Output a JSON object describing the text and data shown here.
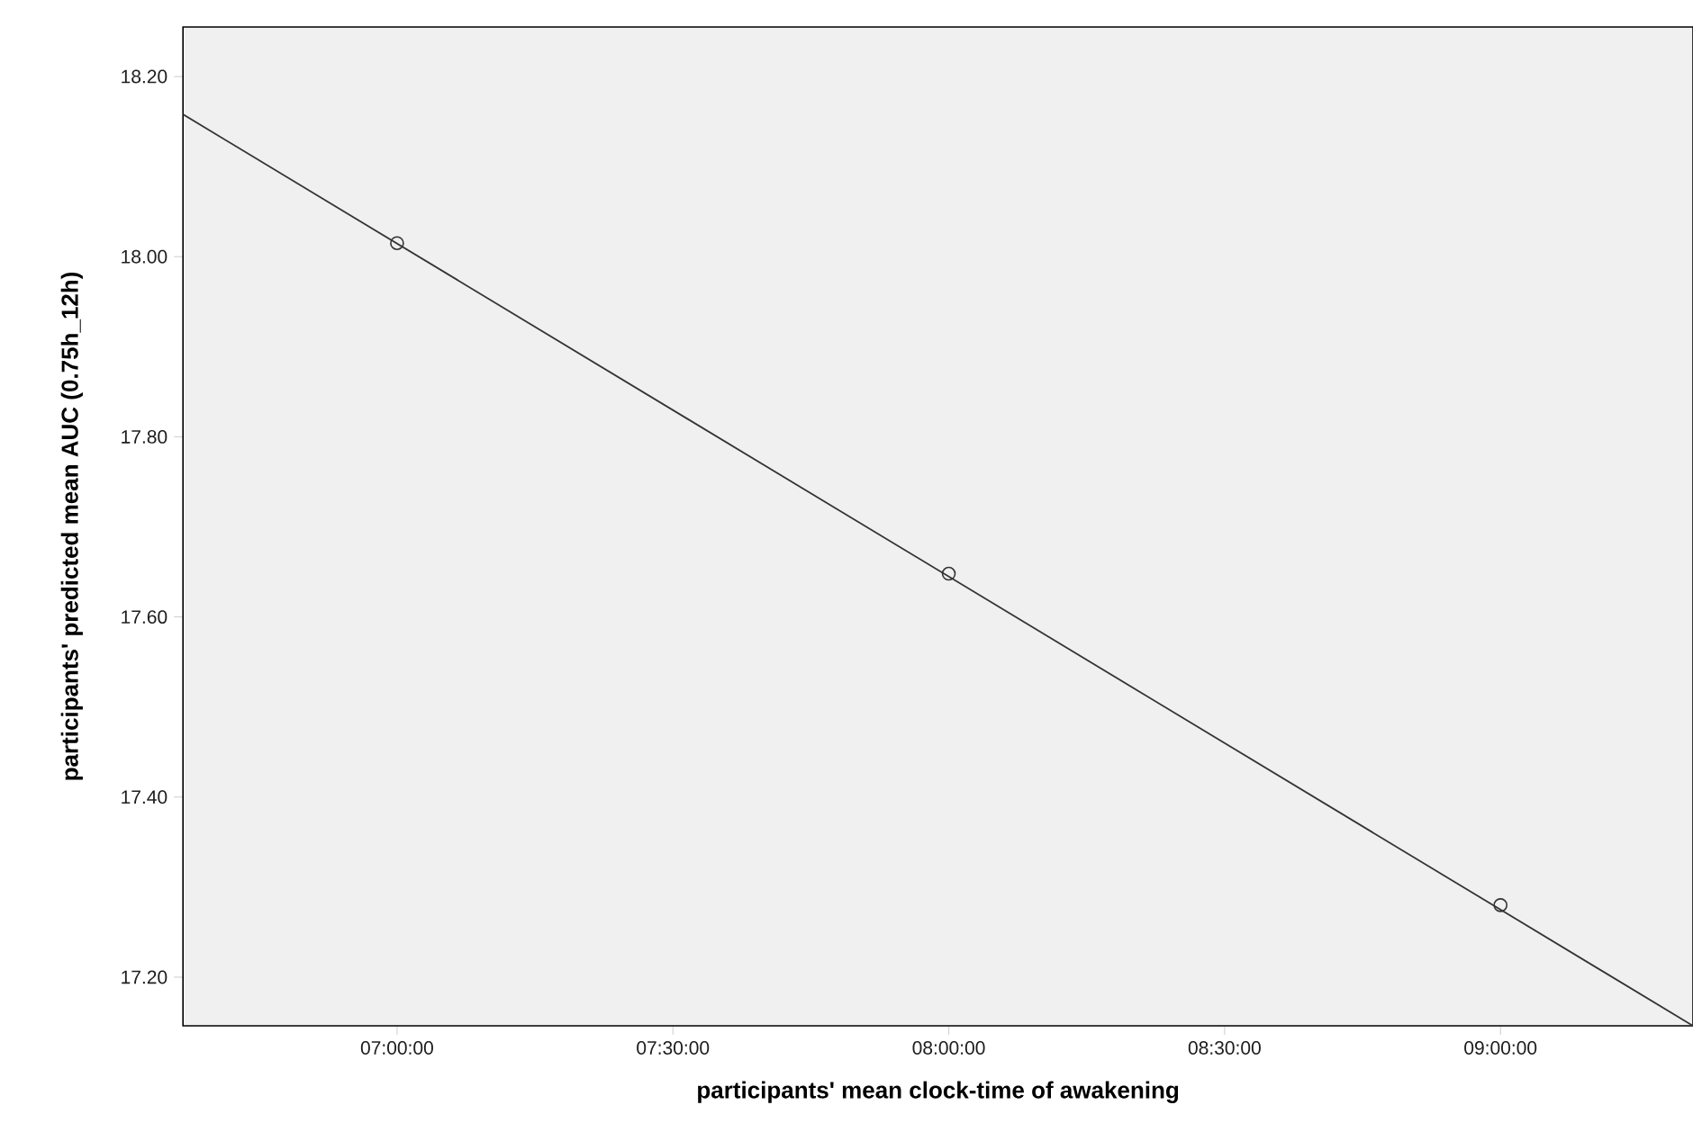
{
  "chart_data": {
    "type": "scatter",
    "xlabel": "participants' mean clock-time of awakening",
    "ylabel": "participants' predicted mean AUC (0.75h_12h)",
    "xlim": [
      6.612,
      9.349
    ],
    "ylim": [
      17.146,
      18.255
    ],
    "xticks": [
      {
        "value": 7,
        "label": "07:00:00"
      },
      {
        "value": 7.5,
        "label": "07:30:00"
      },
      {
        "value": 8,
        "label": "08:00:00"
      },
      {
        "value": 8.5,
        "label": "08:30:00"
      },
      {
        "value": 9,
        "label": "09:00:00"
      }
    ],
    "yticks": [
      {
        "value": 17.2,
        "label": "17.20"
      },
      {
        "value": 17.4,
        "label": "17.40"
      },
      {
        "value": 17.6,
        "label": "17.60"
      },
      {
        "value": 17.8,
        "label": "17.80"
      },
      {
        "value": 18.0,
        "label": "18.00"
      },
      {
        "value": 18.2,
        "label": "18.20"
      }
    ],
    "series": [
      {
        "marker": "circle",
        "color": "#333333",
        "x": [
          7,
          8,
          9
        ],
        "values": [
          18.015,
          17.648,
          17.28
        ]
      },
      {
        "type": "line",
        "marker": "none",
        "color": "#333333",
        "x": [
          6.612,
          9.349
        ],
        "values": [
          18.158,
          17.146
        ]
      }
    ]
  }
}
